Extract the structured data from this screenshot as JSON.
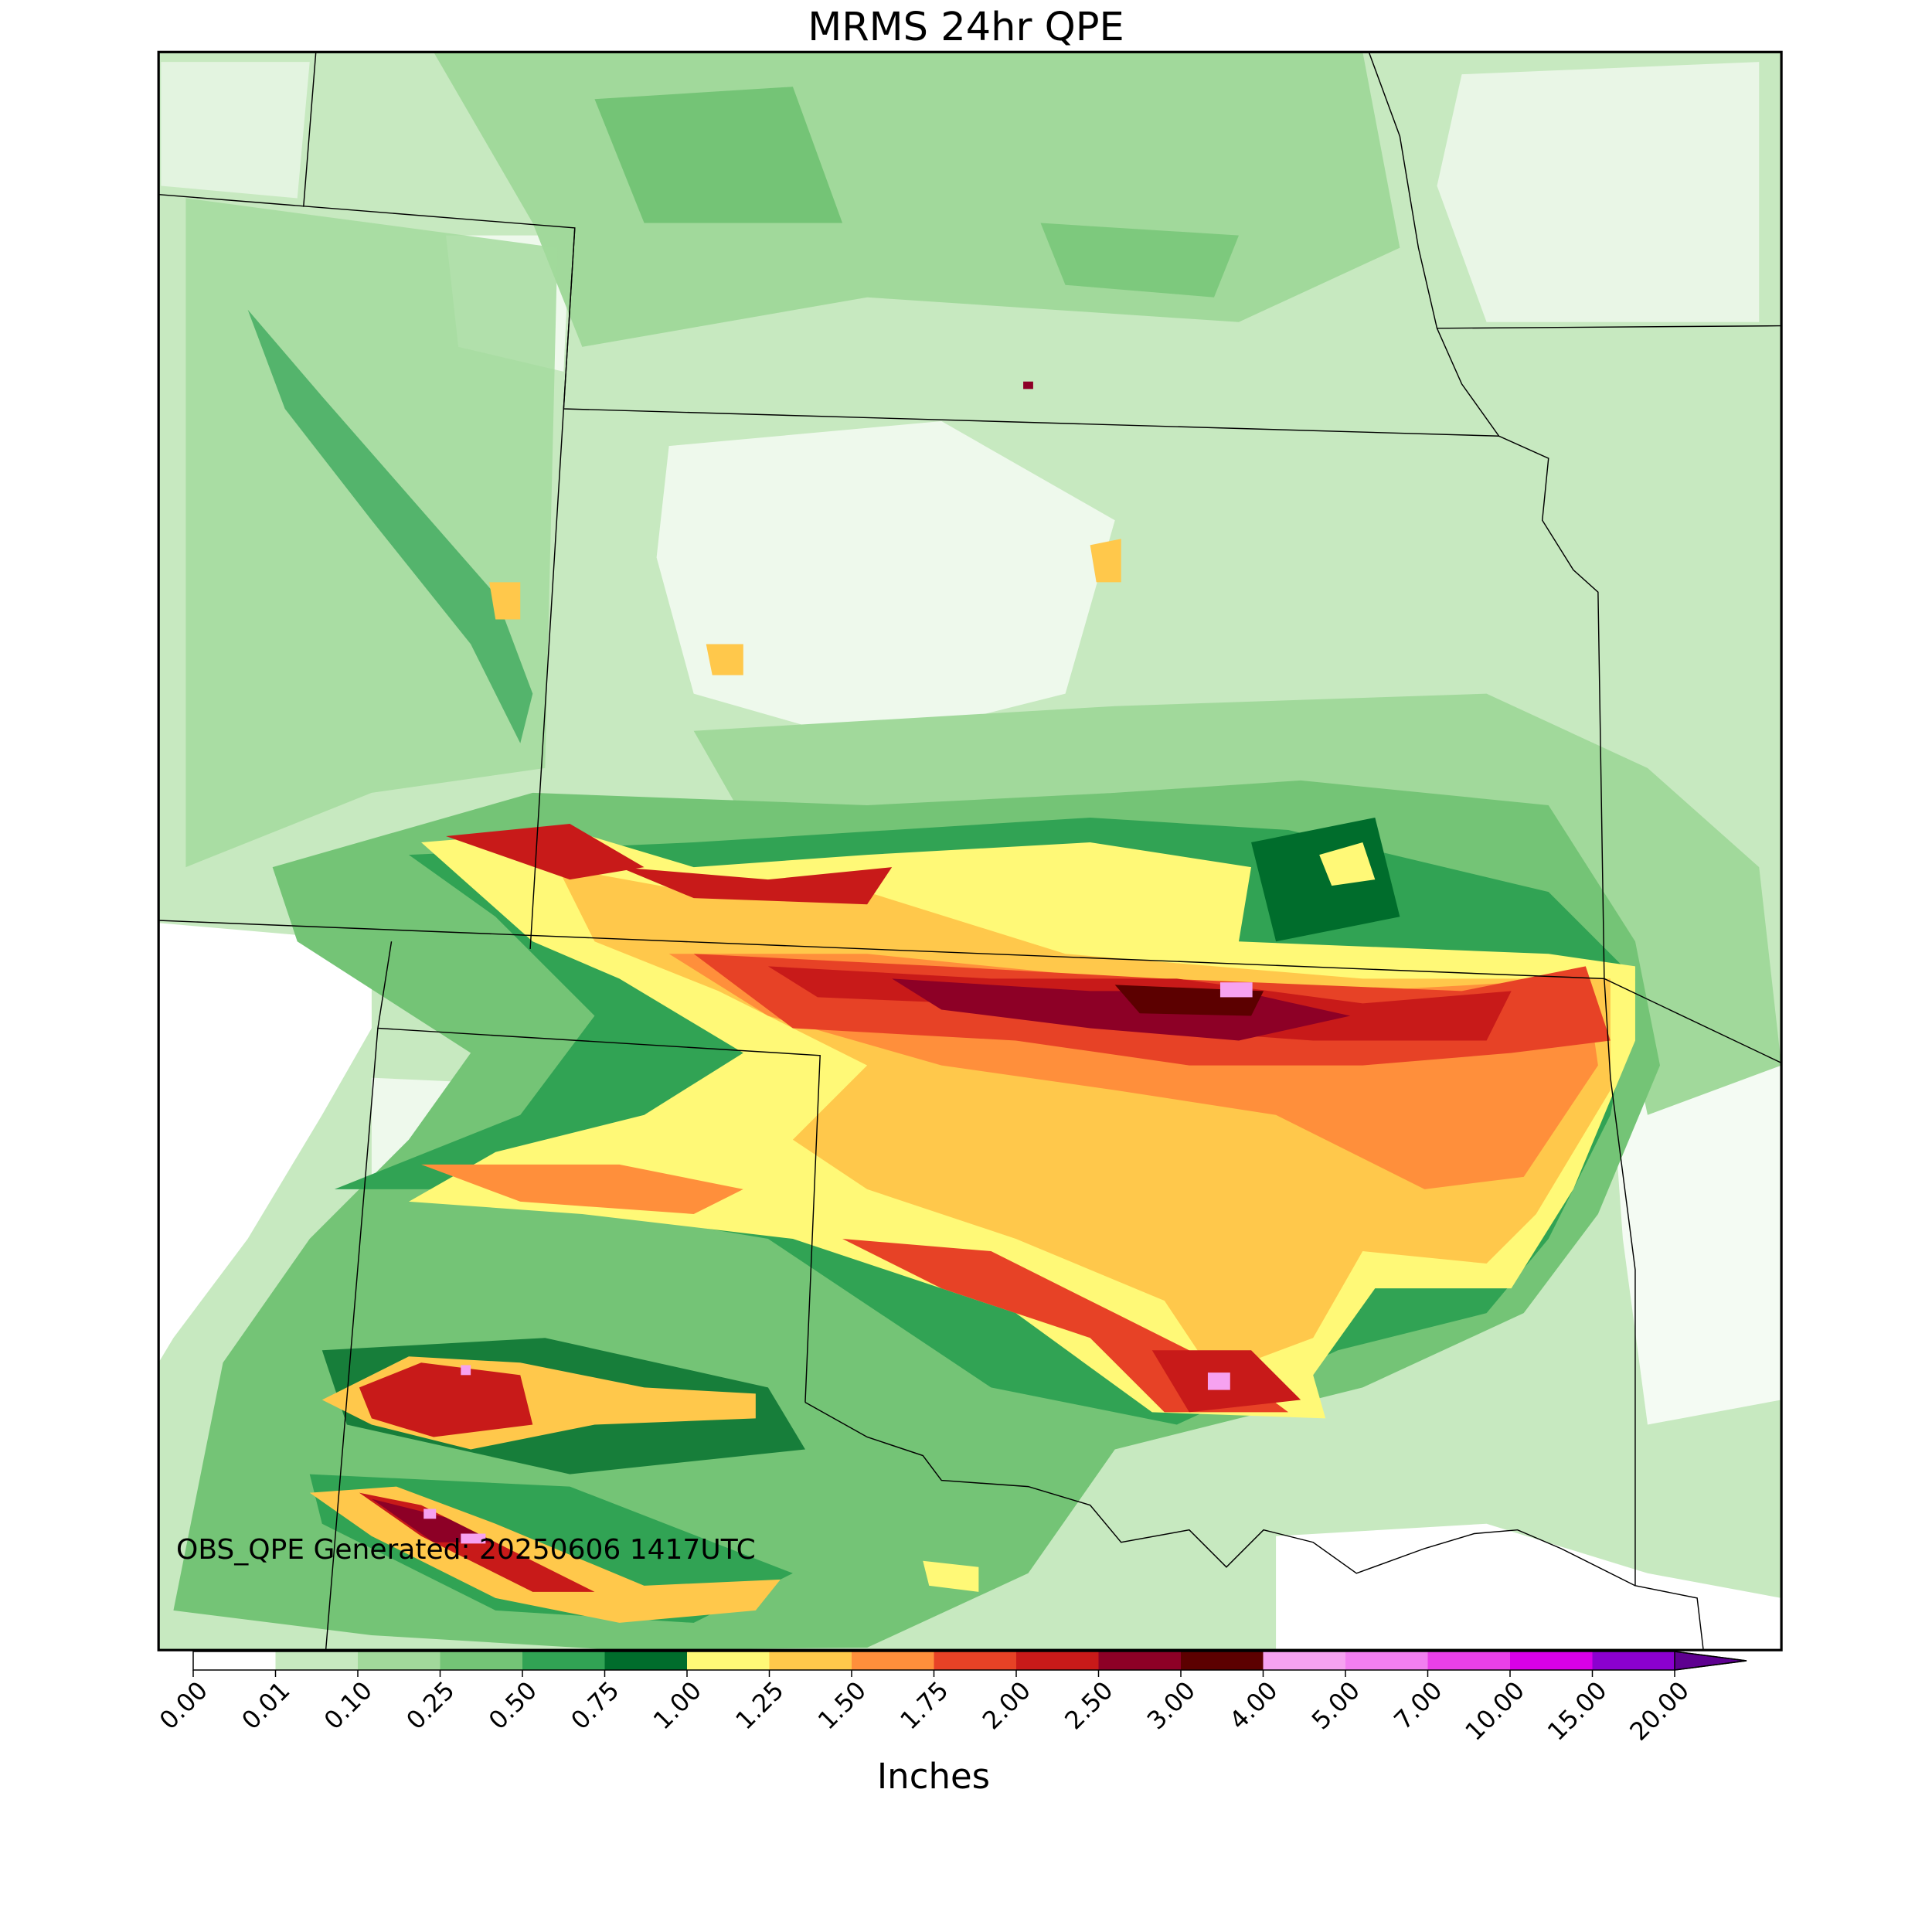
{
  "title": "MRMS 24hr QPE",
  "annotation": "OBS_QPE Generated: 20250606 1417UTC",
  "colorbar": {
    "label": "Inches",
    "levels": [
      {
        "value": 0,
        "label": "0.00"
      },
      {
        "value": 0.01,
        "label": "0.01"
      },
      {
        "value": 0.1,
        "label": "0.10"
      },
      {
        "value": 0.25,
        "label": "0.25"
      },
      {
        "value": 0.5,
        "label": "0.50"
      },
      {
        "value": 0.75,
        "label": "0.75"
      },
      {
        "value": 1,
        "label": "1.00"
      },
      {
        "value": 1.25,
        "label": "1.25"
      },
      {
        "value": 1.5,
        "label": "1.50"
      },
      {
        "value": 1.75,
        "label": "1.75"
      },
      {
        "value": 2,
        "label": "2.00"
      },
      {
        "value": 2.5,
        "label": "2.50"
      },
      {
        "value": 3,
        "label": "3.00"
      },
      {
        "value": 4,
        "label": "4.00"
      },
      {
        "value": 5,
        "label": "5.00"
      },
      {
        "value": 7,
        "label": "7.00"
      },
      {
        "value": 10,
        "label": "10.00"
      },
      {
        "value": 15,
        "label": "15.00"
      },
      {
        "value": 20,
        "label": "20.00"
      }
    ],
    "colors": [
      "#ffffff",
      "#c7e9c0",
      "#a1d99b",
      "#74c476",
      "#31a354",
      "#006d2c",
      "#fff977",
      "#ffc84b",
      "#ff8f3b",
      "#e74226",
      "#c81a19",
      "#8d0026",
      "#5c0000",
      "#f6a2f0",
      "#f27ff0",
      "#e940e8",
      "#d800e7",
      "#8b00cf"
    ],
    "over_color": "#5e0090"
  }
}
